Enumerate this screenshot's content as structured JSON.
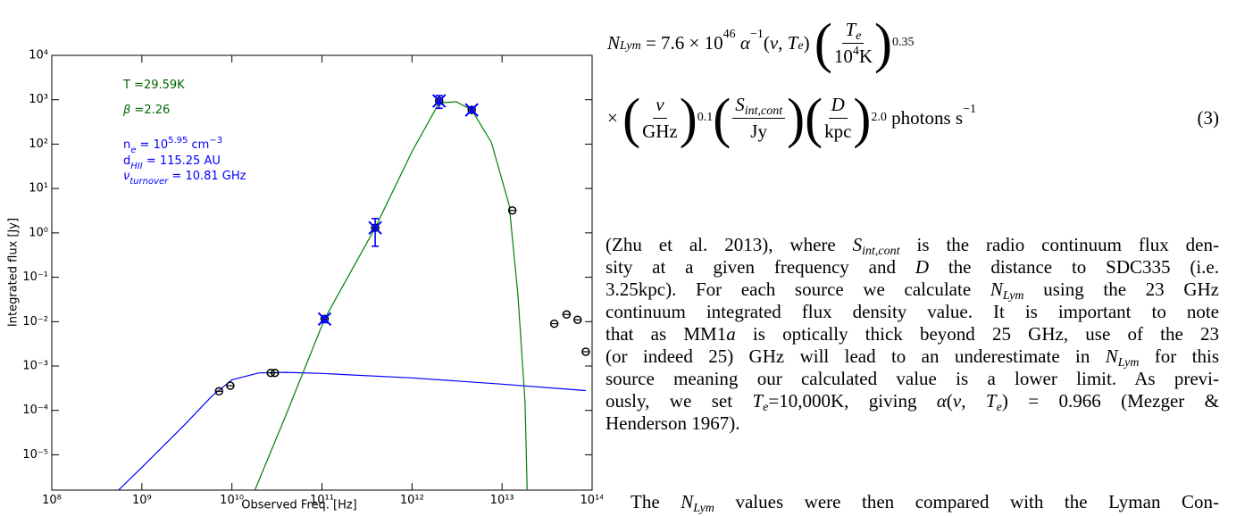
{
  "chart_data": {
    "type": "scatter",
    "xlabel": "Observed Freq. [Hz]",
    "ylabel": "Integrated flux [Jy]",
    "log_x": true,
    "log_y": true,
    "xlim": [
      100000000.0,
      100000000000000.0
    ],
    "ylim": [
      1.6e-06,
      10000.0
    ],
    "xticks": [
      {
        "value": 100000000.0,
        "label": "10⁸"
      },
      {
        "value": 1000000000.0,
        "label": "10⁹"
      },
      {
        "value": 10000000000.0,
        "label": "10¹⁰"
      },
      {
        "value": 100000000000.0,
        "label": "10¹¹"
      },
      {
        "value": 1000000000000.0,
        "label": "10¹²"
      },
      {
        "value": 10000000000000.0,
        "label": "10¹³"
      },
      {
        "value": 100000000000000.0,
        "label": "10¹⁴"
      }
    ],
    "yticks": [
      {
        "value": 1e-05,
        "label": "10⁻⁵"
      },
      {
        "value": 0.0001,
        "label": "10⁻⁴"
      },
      {
        "value": 0.001,
        "label": "10⁻³"
      },
      {
        "value": 0.01,
        "label": "10⁻²"
      },
      {
        "value": 0.1,
        "label": "10⁻¹"
      },
      {
        "value": 1,
        "label": "10⁰"
      },
      {
        "value": 10,
        "label": "10¹"
      },
      {
        "value": 100,
        "label": "10²"
      },
      {
        "value": 1000,
        "label": "10³"
      },
      {
        "value": 10000,
        "label": "10⁴"
      }
    ],
    "series": [
      {
        "style": "line",
        "color": "#0000ff",
        "x": [
          550000000.0,
          1000000000.0,
          3000000000.0,
          6000000000.0,
          10000000000.0,
          20000000000.0,
          40000000000.0,
          100000000000.0,
          1000000000000.0,
          10000000000000.0,
          85000000000000.0
        ],
        "values": [
          1.6e-06,
          5.2e-06,
          4.8e-05,
          0.00021,
          0.00049,
          0.0007,
          0.00072,
          0.00068,
          0.00054,
          0.00039,
          0.00028
        ]
      },
      {
        "style": "line",
        "color": "#008000",
        "x": [
          18000000000.0,
          40000000000.0,
          107000000000.0,
          390000000000.0,
          1000000000000.0,
          2000000000000.0,
          3100000000000.0,
          4600000000000.0,
          7600000000000.0,
          12000000000000.0,
          15000000000000.0,
          18000000000000.0,
          19000000000000.0
        ],
        "values": [
          1.6e-06,
          8e-05,
          0.0115,
          1.3,
          68,
          850,
          900,
          590,
          110,
          4.2,
          0.04,
          0.00015,
          1.6e-06
        ]
      },
      {
        "style": "circle",
        "color": "#000000",
        "x": [
          7200000000.0,
          9600000000.0,
          27000000000.0,
          30000000000.0,
          107000000000.0,
          390000000000.0,
          2000000000000.0,
          4600000000000.0,
          13000000000000.0,
          38000000000000.0,
          52000000000000.0,
          69000000000000.0,
          85000000000000.0
        ],
        "values": [
          0.00027,
          0.00036,
          0.0007,
          0.0007,
          0.0115,
          1.3,
          940,
          590,
          3.2,
          0.009,
          0.0145,
          0.011,
          0.0021
        ]
      },
      {
        "style": "cross",
        "color": "#0000ff",
        "x": [
          107000000000.0,
          390000000000.0,
          2000000000000.0,
          4600000000000.0
        ],
        "values": [
          0.0115,
          1.3,
          940,
          590
        ],
        "errors": [
          0.002,
          0.8,
          300,
          80
        ]
      }
    ],
    "annotations": [
      {
        "color": "#006400",
        "runs": [
          [
            "T =29.59K"
          ]
        ]
      },
      {
        "color": "#006400",
        "runs": [
          [
            "β",
            "i"
          ],
          [
            " =2.26"
          ]
        ]
      },
      {
        "color": "#0000ff",
        "runs": [
          [
            "n"
          ],
          [
            "e",
            "sub"
          ],
          [
            " = 10"
          ],
          [
            "5.95",
            "sup"
          ],
          [
            " cm"
          ],
          [
            "−3",
            "sup"
          ]
        ]
      },
      {
        "color": "#0000ff",
        "runs": [
          [
            "d"
          ],
          [
            "HII",
            "sub"
          ],
          [
            " = 115.25 AU"
          ]
        ]
      },
      {
        "color": "#0000ff",
        "runs": [
          [
            "ν",
            "i"
          ],
          [
            "turnover",
            "sub"
          ],
          [
            " = 10.81 GHz"
          ]
        ]
      }
    ]
  },
  "equation": {
    "N": "N",
    "Lym": "Lym",
    "coef": " = 7.6 × 10",
    "e46": "46",
    "alpha": "α",
    "m1": "−1",
    "nu": "ν",
    "comma": ", ",
    "T": "T",
    "e": "e",
    "open": "(",
    "close": ")",
    "ten": "10",
    "four": "4",
    "K": "K",
    "p035": "0.35",
    "times": "×",
    "GHz": "GHz",
    "p01": "0.1",
    "S": "S",
    "intcont": "int,cont",
    "Jy": "Jy",
    "D": "D",
    "kpc": "kpc",
    "p20": "2.0",
    "photons": "photons s",
    "number": "(3)"
  },
  "paragraphs": [
    [
      [
        [
          "(Zhu et al. 2013), where "
        ],
        [
          "S",
          "i"
        ],
        [
          "int,cont",
          "is"
        ],
        [
          " is the radio continuum flux den-"
        ]
      ],
      [
        [
          "sity at a given frequency and "
        ],
        [
          "D",
          "i"
        ],
        [
          " the distance to SDC335 (i.e."
        ]
      ],
      [
        [
          "3.25kpc). For each source we calculate "
        ],
        [
          "N",
          "i"
        ],
        [
          "Lym",
          "is"
        ],
        [
          " using the 23 GHz"
        ]
      ],
      [
        [
          "continuum integrated flux density value. It is important to note"
        ]
      ],
      [
        [
          "that as MM1"
        ],
        [
          "a",
          "i"
        ],
        [
          " is optically thick beyond 25 GHz, use of the 23"
        ]
      ],
      [
        [
          "(or indeed 25) GHz will lead to an underestimate in "
        ],
        [
          "N",
          "i"
        ],
        [
          "Lym",
          "is"
        ],
        [
          " for this"
        ]
      ],
      [
        [
          "source meaning our calculated value is a lower limit. As previ-"
        ]
      ],
      [
        [
          "ously, we set "
        ],
        [
          "T",
          "i"
        ],
        [
          "e",
          "is"
        ],
        [
          "=10,000K, giving "
        ],
        [
          "α",
          "i"
        ],
        [
          "("
        ],
        [
          "ν",
          "i"
        ],
        [
          ", "
        ],
        [
          "T",
          "i"
        ],
        [
          "e",
          "is"
        ],
        [
          ") = 0.966 (Mezger &"
        ]
      ],
      [
        [
          "Henderson 1967)."
        ]
      ]
    ],
    [
      [
        [
          "The "
        ],
        [
          "N",
          "i"
        ],
        [
          "Lym",
          "is"
        ],
        [
          " values were then compared with the Lyman Con-"
        ]
      ]
    ]
  ]
}
